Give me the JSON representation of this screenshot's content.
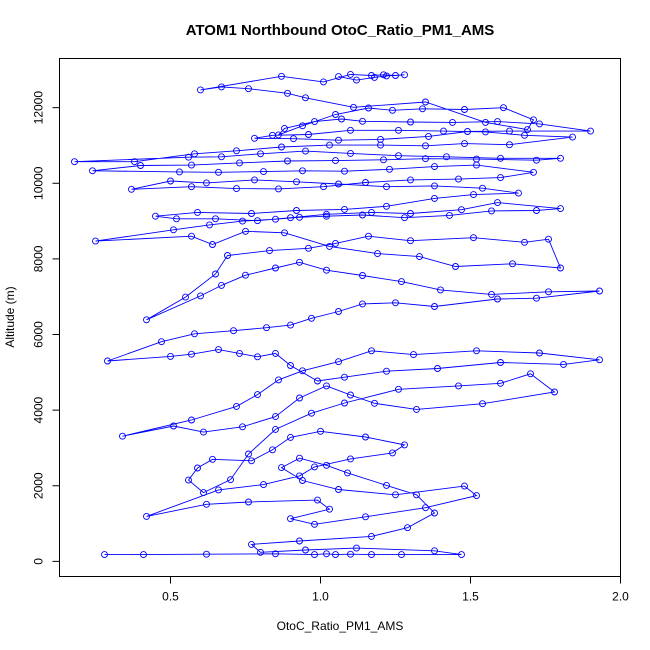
{
  "chart_data": {
    "type": "scatter",
    "title": "ATOM1 Northbound OtoC_Ratio_PM1_AMS",
    "xlabel": "OtoC_Ratio_PM1_AMS",
    "ylabel": "Altitude (m)",
    "xlim": [
      0.13,
      2.0
    ],
    "ylim": [
      -400,
      13300
    ],
    "xticks": [
      0.5,
      1.0,
      1.5,
      2.0
    ],
    "xtick_labels": [
      "0.5",
      "1.0",
      "1.5",
      "2.0"
    ],
    "yticks": [
      0,
      2000,
      4000,
      6000,
      8000,
      10000,
      12000
    ],
    "ytick_labels": [
      "0",
      "2000",
      "4000",
      "6000",
      "8000",
      "10000",
      "12000"
    ],
    "grid": false,
    "legend": "none",
    "colors": {
      "series": "#0000ff"
    },
    "series": [
      {
        "style": "points-connected",
        "points": [
          [
            0.28,
            180
          ],
          [
            0.41,
            180
          ],
          [
            0.62,
            190
          ],
          [
            0.85,
            200
          ],
          [
            0.98,
            180
          ],
          [
            1.02,
            200
          ],
          [
            1.05,
            180
          ],
          [
            1.1,
            190
          ],
          [
            1.17,
            180
          ],
          [
            1.27,
            180
          ],
          [
            1.47,
            180
          ],
          [
            1.38,
            280
          ],
          [
            1.12,
            350
          ],
          [
            0.95,
            300
          ],
          [
            0.8,
            240
          ],
          [
            0.77,
            450
          ],
          [
            0.93,
            540
          ],
          [
            1.17,
            660
          ],
          [
            1.29,
            890
          ],
          [
            1.38,
            1280
          ],
          [
            1.32,
            1760
          ],
          [
            1.22,
            2010
          ],
          [
            1.09,
            2340
          ],
          [
            1.02,
            2540
          ],
          [
            0.93,
            2730
          ],
          [
            0.87,
            2480
          ],
          [
            0.94,
            2140
          ],
          [
            1.06,
            1900
          ],
          [
            1.25,
            1760
          ],
          [
            1.48,
            1990
          ],
          [
            1.52,
            1740
          ],
          [
            1.35,
            1420
          ],
          [
            1.15,
            1180
          ],
          [
            0.98,
            980
          ],
          [
            0.9,
            1130
          ],
          [
            1.03,
            1380
          ],
          [
            0.99,
            1620
          ],
          [
            0.76,
            1570
          ],
          [
            0.62,
            1510
          ],
          [
            0.42,
            1190
          ],
          [
            0.66,
            1890
          ],
          [
            0.81,
            2030
          ],
          [
            0.93,
            2260
          ],
          [
            0.98,
            2500
          ],
          [
            1.1,
            2710
          ],
          [
            1.24,
            2870
          ],
          [
            1.28,
            3080
          ],
          [
            1.15,
            3290
          ],
          [
            1.0,
            3440
          ],
          [
            0.9,
            3280
          ],
          [
            0.84,
            2950
          ],
          [
            0.77,
            2660
          ],
          [
            0.64,
            2700
          ],
          [
            0.59,
            2470
          ],
          [
            0.56,
            2150
          ],
          [
            0.61,
            1820
          ],
          [
            0.7,
            2160
          ],
          [
            0.76,
            2840
          ],
          [
            0.85,
            3490
          ],
          [
            0.97,
            3920
          ],
          [
            1.08,
            4190
          ],
          [
            1.26,
            4550
          ],
          [
            1.46,
            4640
          ],
          [
            1.6,
            4710
          ],
          [
            1.7,
            4960
          ],
          [
            1.78,
            4480
          ],
          [
            1.54,
            4170
          ],
          [
            1.32,
            4020
          ],
          [
            1.18,
            4180
          ],
          [
            1.1,
            4400
          ],
          [
            1.02,
            4640
          ],
          [
            0.93,
            4320
          ],
          [
            0.85,
            3830
          ],
          [
            0.74,
            3560
          ],
          [
            0.61,
            3420
          ],
          [
            0.51,
            3580
          ],
          [
            0.34,
            3310
          ],
          [
            0.57,
            3740
          ],
          [
            0.72,
            4100
          ],
          [
            0.79,
            4410
          ],
          [
            0.86,
            4800
          ],
          [
            0.94,
            5040
          ],
          [
            1.06,
            5280
          ],
          [
            1.17,
            5570
          ],
          [
            1.31,
            5470
          ],
          [
            1.52,
            5570
          ],
          [
            1.73,
            5510
          ],
          [
            1.93,
            5330
          ],
          [
            1.81,
            5210
          ],
          [
            1.6,
            5260
          ],
          [
            1.39,
            5100
          ],
          [
            1.22,
            5030
          ],
          [
            1.08,
            4870
          ],
          [
            0.99,
            4770
          ],
          [
            0.9,
            5180
          ],
          [
            0.85,
            5500
          ],
          [
            0.79,
            5410
          ],
          [
            0.73,
            5500
          ],
          [
            0.66,
            5600
          ],
          [
            0.57,
            5480
          ],
          [
            0.5,
            5420
          ],
          [
            0.29,
            5300
          ],
          [
            0.47,
            5810
          ],
          [
            0.58,
            6020
          ],
          [
            0.71,
            6100
          ],
          [
            0.82,
            6180
          ],
          [
            0.9,
            6250
          ],
          [
            0.97,
            6430
          ],
          [
            1.06,
            6610
          ],
          [
            1.14,
            6810
          ],
          [
            1.25,
            6840
          ],
          [
            1.38,
            6740
          ],
          [
            1.59,
            6940
          ],
          [
            1.72,
            6960
          ],
          [
            1.93,
            7150
          ],
          [
            1.76,
            7130
          ],
          [
            1.57,
            7060
          ],
          [
            1.4,
            7180
          ],
          [
            1.27,
            7400
          ],
          [
            1.14,
            7560
          ],
          [
            1.02,
            7700
          ],
          [
            0.93,
            7910
          ],
          [
            0.85,
            7760
          ],
          [
            0.75,
            7570
          ],
          [
            0.67,
            7300
          ],
          [
            0.6,
            7020
          ],
          [
            0.42,
            6390
          ],
          [
            0.55,
            6990
          ],
          [
            0.65,
            7600
          ],
          [
            0.69,
            8090
          ],
          [
            0.83,
            8220
          ],
          [
            0.96,
            8280
          ],
          [
            1.05,
            8410
          ],
          [
            1.16,
            8600
          ],
          [
            1.3,
            8480
          ],
          [
            1.51,
            8560
          ],
          [
            1.68,
            8440
          ],
          [
            1.76,
            8520
          ],
          [
            1.8,
            7760
          ],
          [
            1.64,
            7870
          ],
          [
            1.45,
            7800
          ],
          [
            1.33,
            8060
          ],
          [
            1.19,
            8140
          ],
          [
            1.03,
            8330
          ],
          [
            0.88,
            8690
          ],
          [
            0.75,
            8730
          ],
          [
            0.64,
            8380
          ],
          [
            0.57,
            8600
          ],
          [
            0.25,
            8470
          ],
          [
            0.51,
            8770
          ],
          [
            0.63,
            8900
          ],
          [
            0.74,
            9000
          ],
          [
            0.85,
            9050
          ],
          [
            0.93,
            9100
          ],
          [
            1.02,
            9130
          ],
          [
            1.14,
            9160
          ],
          [
            1.28,
            9090
          ],
          [
            1.43,
            9150
          ],
          [
            1.57,
            9270
          ],
          [
            1.72,
            9280
          ],
          [
            1.8,
            9330
          ],
          [
            1.59,
            9490
          ],
          [
            1.47,
            9300
          ],
          [
            1.3,
            9200
          ],
          [
            1.17,
            9230
          ],
          [
            1.02,
            9180
          ],
          [
            0.9,
            9090
          ],
          [
            0.79,
            9010
          ],
          [
            0.65,
            9060
          ],
          [
            0.52,
            9060
          ],
          [
            0.45,
            9130
          ],
          [
            0.59,
            9230
          ],
          [
            0.77,
            9200
          ],
          [
            0.92,
            9280
          ],
          [
            1.08,
            9310
          ],
          [
            1.22,
            9390
          ],
          [
            1.38,
            9600
          ],
          [
            1.51,
            9700
          ],
          [
            1.66,
            9740
          ],
          [
            1.54,
            9870
          ],
          [
            1.38,
            9930
          ],
          [
            1.22,
            9910
          ],
          [
            1.06,
            9980
          ],
          [
            0.92,
            10040
          ],
          [
            0.78,
            10090
          ],
          [
            0.62,
            10010
          ],
          [
            0.5,
            10060
          ],
          [
            0.37,
            9840
          ],
          [
            0.57,
            9910
          ],
          [
            0.72,
            9860
          ],
          [
            0.86,
            9850
          ],
          [
            1.01,
            9910
          ],
          [
            1.15,
            10020
          ],
          [
            1.3,
            10090
          ],
          [
            1.46,
            10110
          ],
          [
            1.6,
            10150
          ],
          [
            1.71,
            10290
          ],
          [
            1.52,
            10480
          ],
          [
            1.38,
            10440
          ],
          [
            1.23,
            10370
          ],
          [
            1.08,
            10320
          ],
          [
            0.94,
            10330
          ],
          [
            0.81,
            10310
          ],
          [
            0.66,
            10290
          ],
          [
            0.53,
            10300
          ],
          [
            0.24,
            10330
          ],
          [
            0.4,
            10470
          ],
          [
            0.57,
            10480
          ],
          [
            0.73,
            10540
          ],
          [
            0.89,
            10590
          ],
          [
            1.05,
            10600
          ],
          [
            1.21,
            10620
          ],
          [
            1.35,
            10650
          ],
          [
            1.52,
            10640
          ],
          [
            1.72,
            10610
          ],
          [
            1.8,
            10660
          ],
          [
            1.6,
            10660
          ],
          [
            1.42,
            10700
          ],
          [
            1.26,
            10730
          ],
          [
            1.1,
            10790
          ],
          [
            0.95,
            10850
          ],
          [
            0.8,
            10780
          ],
          [
            0.67,
            10700
          ],
          [
            0.56,
            10690
          ],
          [
            0.18,
            10570
          ],
          [
            0.38,
            10570
          ],
          [
            0.58,
            10780
          ],
          [
            0.72,
            10860
          ],
          [
            0.87,
            10960
          ],
          [
            1.03,
            11010
          ],
          [
            1.2,
            11010
          ],
          [
            1.35,
            10990
          ],
          [
            1.48,
            11050
          ],
          [
            1.63,
            11020
          ],
          [
            1.84,
            11220
          ],
          [
            1.68,
            11270
          ],
          [
            1.55,
            11360
          ],
          [
            1.41,
            11380
          ],
          [
            1.26,
            11400
          ],
          [
            1.1,
            11400
          ],
          [
            0.96,
            11290
          ],
          [
            0.84,
            11270
          ],
          [
            0.78,
            11190
          ],
          [
            0.91,
            11180
          ],
          [
            1.06,
            11140
          ],
          [
            1.2,
            11160
          ],
          [
            1.36,
            11240
          ],
          [
            1.49,
            11370
          ],
          [
            1.63,
            11380
          ],
          [
            1.9,
            11380
          ],
          [
            1.73,
            11570
          ],
          [
            1.59,
            11630
          ],
          [
            1.44,
            11610
          ],
          [
            1.3,
            11620
          ],
          [
            1.14,
            11640
          ],
          [
            1.07,
            11700
          ],
          [
            0.98,
            11630
          ],
          [
            0.88,
            11450
          ],
          [
            0.86,
            11280
          ],
          [
            0.94,
            11520
          ],
          [
            1.05,
            11820
          ],
          [
            1.16,
            11990
          ],
          [
            1.24,
            11930
          ],
          [
            1.34,
            11970
          ],
          [
            1.48,
            11950
          ],
          [
            1.61,
            12000
          ],
          [
            1.71,
            11680
          ],
          [
            1.69,
            11420
          ],
          [
            1.55,
            11610
          ],
          [
            1.35,
            12150
          ],
          [
            1.11,
            12010
          ],
          [
            0.95,
            12260
          ],
          [
            0.89,
            12380
          ],
          [
            0.76,
            12500
          ],
          [
            0.67,
            12550
          ],
          [
            0.6,
            12470
          ],
          [
            0.87,
            12830
          ],
          [
            1.01,
            12680
          ],
          [
            1.1,
            12880
          ],
          [
            1.17,
            12850
          ],
          [
            1.21,
            12870
          ],
          [
            1.25,
            12850
          ],
          [
            1.28,
            12870
          ],
          [
            1.22,
            12840
          ],
          [
            1.18,
            12800
          ],
          [
            1.12,
            12730
          ],
          [
            1.06,
            12820
          ]
        ]
      }
    ]
  }
}
